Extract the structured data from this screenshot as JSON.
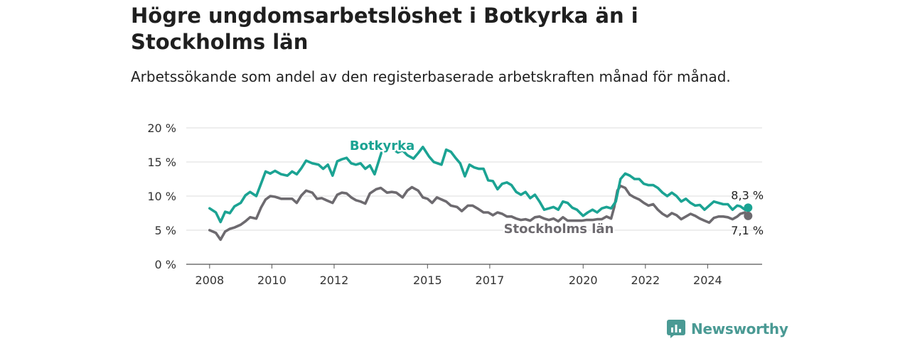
{
  "title": "Högre ungdomsarbetslöshet i Botkyrka än i Stockholms län",
  "subtitle": "Arbetssökande som andel av den registerbaserade arbetskraften månad för månad.",
  "brand": {
    "name": "Newsworthy",
    "icon": "newsworthy-logo-icon",
    "color": "#4a9a94"
  },
  "chart_data": {
    "type": "line",
    "x_axis": {
      "ticks": [
        2008,
        2010,
        2012,
        2015,
        2017,
        2020,
        2022,
        2024
      ],
      "tick_labels": [
        "2008",
        "2010",
        "2012",
        "2015",
        "2017",
        "2020",
        "2022",
        "2024"
      ],
      "range": [
        2007.25,
        2025.75
      ]
    },
    "y_axis": {
      "ticks": [
        0,
        5,
        10,
        15,
        20
      ],
      "tick_labels": [
        "0 %",
        "5 %",
        "10 %",
        "15 %",
        "20 %"
      ],
      "range": [
        0,
        20
      ]
    },
    "grid": "horizontal",
    "series": [
      {
        "name": "Botkyrka",
        "color": "#1ba393",
        "end_label": "8,3 %",
        "points": [
          [
            2008.0,
            8.2
          ],
          [
            2008.2,
            7.6
          ],
          [
            2008.35,
            6.2
          ],
          [
            2008.5,
            7.7
          ],
          [
            2008.65,
            7.5
          ],
          [
            2008.8,
            8.5
          ],
          [
            2009.0,
            9.0
          ],
          [
            2009.15,
            10.1
          ],
          [
            2009.3,
            10.6
          ],
          [
            2009.5,
            10.0
          ],
          [
            2009.65,
            11.8
          ],
          [
            2009.8,
            13.6
          ],
          [
            2009.95,
            13.3
          ],
          [
            2010.1,
            13.7
          ],
          [
            2010.3,
            13.2
          ],
          [
            2010.5,
            13.0
          ],
          [
            2010.65,
            13.6
          ],
          [
            2010.8,
            13.2
          ],
          [
            2010.95,
            14.1
          ],
          [
            2011.1,
            15.2
          ],
          [
            2011.3,
            14.8
          ],
          [
            2011.5,
            14.6
          ],
          [
            2011.65,
            14.0
          ],
          [
            2011.8,
            14.6
          ],
          [
            2011.95,
            13.0
          ],
          [
            2012.1,
            15.1
          ],
          [
            2012.25,
            15.4
          ],
          [
            2012.4,
            15.6
          ],
          [
            2012.55,
            14.8
          ],
          [
            2012.7,
            14.6
          ],
          [
            2012.85,
            14.8
          ],
          [
            2013.0,
            14.0
          ],
          [
            2013.15,
            14.5
          ],
          [
            2013.3,
            13.2
          ],
          [
            2013.55,
            16.8
          ],
          [
            2013.7,
            17.3
          ],
          [
            2013.85,
            17.0
          ],
          [
            2014.05,
            16.4
          ],
          [
            2014.2,
            16.7
          ],
          [
            2014.35,
            16.0
          ],
          [
            2014.55,
            15.5
          ],
          [
            2014.7,
            16.3
          ],
          [
            2014.85,
            17.2
          ],
          [
            2015.05,
            15.8
          ],
          [
            2015.2,
            15.0
          ],
          [
            2015.45,
            14.6
          ],
          [
            2015.6,
            16.8
          ],
          [
            2015.75,
            16.5
          ],
          [
            2015.9,
            15.6
          ],
          [
            2016.05,
            14.8
          ],
          [
            2016.2,
            12.9
          ],
          [
            2016.35,
            14.6
          ],
          [
            2016.5,
            14.2
          ],
          [
            2016.65,
            14.0
          ],
          [
            2016.8,
            14.0
          ],
          [
            2016.95,
            12.3
          ],
          [
            2017.1,
            12.2
          ],
          [
            2017.25,
            11.0
          ],
          [
            2017.4,
            11.8
          ],
          [
            2017.55,
            12.0
          ],
          [
            2017.7,
            11.6
          ],
          [
            2017.85,
            10.6
          ],
          [
            2018.0,
            10.2
          ],
          [
            2018.15,
            10.6
          ],
          [
            2018.3,
            9.7
          ],
          [
            2018.45,
            10.2
          ],
          [
            2018.6,
            9.2
          ],
          [
            2018.75,
            8.0
          ],
          [
            2018.9,
            8.2
          ],
          [
            2019.05,
            8.4
          ],
          [
            2019.2,
            8.0
          ],
          [
            2019.35,
            9.2
          ],
          [
            2019.5,
            9.0
          ],
          [
            2019.65,
            8.3
          ],
          [
            2019.8,
            8.0
          ],
          [
            2020.0,
            7.1
          ],
          [
            2020.15,
            7.6
          ],
          [
            2020.3,
            8.0
          ],
          [
            2020.45,
            7.6
          ],
          [
            2020.6,
            8.2
          ],
          [
            2020.75,
            8.4
          ],
          [
            2020.9,
            8.2
          ],
          [
            2021.05,
            9.2
          ],
          [
            2021.2,
            12.5
          ],
          [
            2021.35,
            13.3
          ],
          [
            2021.5,
            13.0
          ],
          [
            2021.65,
            12.5
          ],
          [
            2021.8,
            12.5
          ],
          [
            2021.95,
            11.8
          ],
          [
            2022.1,
            11.6
          ],
          [
            2022.25,
            11.6
          ],
          [
            2022.4,
            11.2
          ],
          [
            2022.55,
            10.5
          ],
          [
            2022.7,
            10.0
          ],
          [
            2022.85,
            10.5
          ],
          [
            2023.0,
            10.0
          ],
          [
            2023.15,
            9.2
          ],
          [
            2023.3,
            9.6
          ],
          [
            2023.45,
            9.0
          ],
          [
            2023.6,
            8.6
          ],
          [
            2023.75,
            8.7
          ],
          [
            2023.9,
            8.0
          ],
          [
            2024.05,
            8.6
          ],
          [
            2024.2,
            9.2
          ],
          [
            2024.35,
            9.0
          ],
          [
            2024.5,
            8.8
          ],
          [
            2024.65,
            8.8
          ],
          [
            2024.8,
            8.0
          ],
          [
            2024.95,
            8.6
          ],
          [
            2025.05,
            8.5
          ],
          [
            2025.2,
            8.0
          ],
          [
            2025.3,
            8.3
          ]
        ]
      },
      {
        "name": "Stockholms län",
        "color": "#6d6a6f",
        "end_label": "7,1 %",
        "points": [
          [
            2008.0,
            5.0
          ],
          [
            2008.2,
            4.6
          ],
          [
            2008.35,
            3.6
          ],
          [
            2008.5,
            4.8
          ],
          [
            2008.65,
            5.2
          ],
          [
            2008.8,
            5.4
          ],
          [
            2009.0,
            5.8
          ],
          [
            2009.15,
            6.3
          ],
          [
            2009.3,
            6.9
          ],
          [
            2009.5,
            6.7
          ],
          [
            2009.65,
            8.3
          ],
          [
            2009.8,
            9.5
          ],
          [
            2009.95,
            10.0
          ],
          [
            2010.1,
            9.9
          ],
          [
            2010.3,
            9.6
          ],
          [
            2010.5,
            9.6
          ],
          [
            2010.65,
            9.6
          ],
          [
            2010.8,
            9.0
          ],
          [
            2010.95,
            10.1
          ],
          [
            2011.1,
            10.8
          ],
          [
            2011.3,
            10.5
          ],
          [
            2011.45,
            9.6
          ],
          [
            2011.6,
            9.7
          ],
          [
            2011.75,
            9.4
          ],
          [
            2011.95,
            9.0
          ],
          [
            2012.1,
            10.2
          ],
          [
            2012.25,
            10.5
          ],
          [
            2012.4,
            10.4
          ],
          [
            2012.55,
            9.8
          ],
          [
            2012.7,
            9.4
          ],
          [
            2012.85,
            9.2
          ],
          [
            2013.0,
            8.9
          ],
          [
            2013.15,
            10.4
          ],
          [
            2013.35,
            11.0
          ],
          [
            2013.5,
            11.2
          ],
          [
            2013.7,
            10.5
          ],
          [
            2013.85,
            10.6
          ],
          [
            2014.0,
            10.5
          ],
          [
            2014.2,
            9.8
          ],
          [
            2014.35,
            10.8
          ],
          [
            2014.5,
            11.3
          ],
          [
            2014.7,
            10.8
          ],
          [
            2014.85,
            9.8
          ],
          [
            2015.0,
            9.6
          ],
          [
            2015.15,
            9.0
          ],
          [
            2015.3,
            9.8
          ],
          [
            2015.45,
            9.5
          ],
          [
            2015.6,
            9.2
          ],
          [
            2015.75,
            8.6
          ],
          [
            2015.95,
            8.4
          ],
          [
            2016.1,
            7.8
          ],
          [
            2016.3,
            8.6
          ],
          [
            2016.45,
            8.6
          ],
          [
            2016.6,
            8.2
          ],
          [
            2016.8,
            7.6
          ],
          [
            2016.95,
            7.6
          ],
          [
            2017.1,
            7.2
          ],
          [
            2017.25,
            7.6
          ],
          [
            2017.4,
            7.4
          ],
          [
            2017.55,
            7.0
          ],
          [
            2017.7,
            7.0
          ],
          [
            2017.85,
            6.7
          ],
          [
            2018.0,
            6.5
          ],
          [
            2018.15,
            6.6
          ],
          [
            2018.3,
            6.4
          ],
          [
            2018.45,
            6.9
          ],
          [
            2018.6,
            7.0
          ],
          [
            2018.75,
            6.7
          ],
          [
            2018.9,
            6.5
          ],
          [
            2019.05,
            6.7
          ],
          [
            2019.2,
            6.3
          ],
          [
            2019.35,
            6.9
          ],
          [
            2019.5,
            6.4
          ],
          [
            2019.65,
            6.4
          ],
          [
            2019.8,
            6.4
          ],
          [
            2019.95,
            6.4
          ],
          [
            2020.1,
            6.5
          ],
          [
            2020.3,
            6.5
          ],
          [
            2020.45,
            6.6
          ],
          [
            2020.6,
            6.6
          ],
          [
            2020.75,
            7.0
          ],
          [
            2020.9,
            6.7
          ],
          [
            2021.0,
            8.4
          ],
          [
            2021.1,
            10.8
          ],
          [
            2021.2,
            11.5
          ],
          [
            2021.35,
            11.2
          ],
          [
            2021.5,
            10.2
          ],
          [
            2021.65,
            9.8
          ],
          [
            2021.8,
            9.5
          ],
          [
            2021.95,
            9.0
          ],
          [
            2022.1,
            8.6
          ],
          [
            2022.25,
            8.8
          ],
          [
            2022.4,
            8.0
          ],
          [
            2022.55,
            7.4
          ],
          [
            2022.7,
            7.0
          ],
          [
            2022.85,
            7.5
          ],
          [
            2023.0,
            7.2
          ],
          [
            2023.15,
            6.6
          ],
          [
            2023.3,
            7.0
          ],
          [
            2023.45,
            7.4
          ],
          [
            2023.6,
            7.1
          ],
          [
            2023.75,
            6.7
          ],
          [
            2023.9,
            6.4
          ],
          [
            2024.05,
            6.1
          ],
          [
            2024.2,
            6.8
          ],
          [
            2024.35,
            7.0
          ],
          [
            2024.5,
            7.0
          ],
          [
            2024.65,
            6.9
          ],
          [
            2024.8,
            6.6
          ],
          [
            2024.95,
            7.0
          ],
          [
            2025.05,
            7.4
          ],
          [
            2025.2,
            7.6
          ],
          [
            2025.3,
            7.1
          ]
        ]
      }
    ]
  }
}
